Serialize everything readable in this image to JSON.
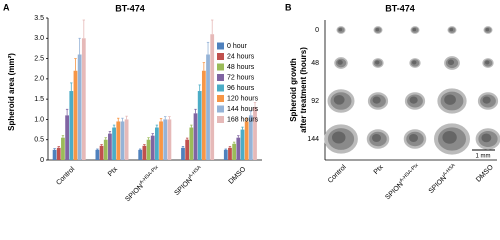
{
  "panel_labels": [
    "A",
    "B"
  ],
  "chart_data": {
    "type": "bar",
    "title": "BT-474",
    "y_label": "Spheroid area (mm²)",
    "categories": [
      "Control",
      "Ptx",
      "SPION",
      "SPION",
      "DMSO"
    ],
    "category_superscripts": [
      null,
      null,
      "A-HSA-Ptx",
      "A-HSA",
      null
    ],
    "ylim": [
      0,
      3.5
    ],
    "yticks": [
      0,
      0.5,
      {
        "value": 1,
        "label": "1.0"
      },
      1.5,
      {
        "value": 2,
        "label": "2.0"
      },
      2.5,
      {
        "value": 3,
        "label": "3.0"
      },
      3.5
    ],
    "legend": "right",
    "series": [
      {
        "name": "0 hour",
        "color": "#4f81bd",
        "values": [
          0.25,
          0.25,
          0.25,
          0.3,
          0.25
        ],
        "errors": [
          0.03,
          0.02,
          0.02,
          0.03,
          0.02
        ]
      },
      {
        "name": "24 hours",
        "color": "#c0504d",
        "values": [
          0.3,
          0.35,
          0.35,
          0.5,
          0.3
        ],
        "errors": [
          0.03,
          0.03,
          0.03,
          0.04,
          0.03
        ]
      },
      {
        "name": "48 hours",
        "color": "#9bbb59",
        "values": [
          0.55,
          0.5,
          0.5,
          0.8,
          0.4
        ],
        "errors": [
          0.05,
          0.05,
          0.05,
          0.06,
          0.04
        ]
      },
      {
        "name": "72 hours",
        "color": "#8064a2",
        "values": [
          1.1,
          0.65,
          0.6,
          1.15,
          0.55
        ],
        "errors": [
          0.15,
          0.05,
          0.05,
          0.1,
          0.05
        ]
      },
      {
        "name": "96 hours",
        "color": "#4bacc6",
        "values": [
          1.7,
          0.8,
          0.8,
          1.7,
          0.75
        ],
        "errors": [
          0.2,
          0.06,
          0.06,
          0.15,
          0.06
        ]
      },
      {
        "name": "120 hours",
        "color": "#f79646",
        "values": [
          2.2,
          0.95,
          0.95,
          2.2,
          0.95
        ],
        "errors": [
          0.3,
          0.08,
          0.07,
          0.2,
          0.08
        ]
      },
      {
        "name": "144 hours",
        "color": "#95b3d7",
        "values": [
          2.6,
          0.95,
          1.0,
          2.6,
          1.1
        ],
        "errors": [
          0.4,
          0.08,
          0.07,
          0.3,
          0.1
        ]
      },
      {
        "name": "168 hours",
        "color": "#e6b9b8",
        "values": [
          3.0,
          1.0,
          1.0,
          3.1,
          1.3
        ],
        "errors": [
          0.45,
          0.08,
          0.07,
          0.35,
          0.12
        ]
      }
    ]
  },
  "image_panel": {
    "title": "BT-474",
    "y_label": [
      "Spheroid growth",
      "after treatment (hours)"
    ],
    "row_labels": [
      "0",
      "48",
      "92",
      "144"
    ],
    "col_labels": [
      "Control",
      "Ptx",
      "SPION",
      "SPION",
      "DMSO"
    ],
    "col_superscripts": [
      null,
      null,
      "A-HSA-Ptx",
      "A-HSA",
      null
    ],
    "scale_label": "1 mm"
  }
}
